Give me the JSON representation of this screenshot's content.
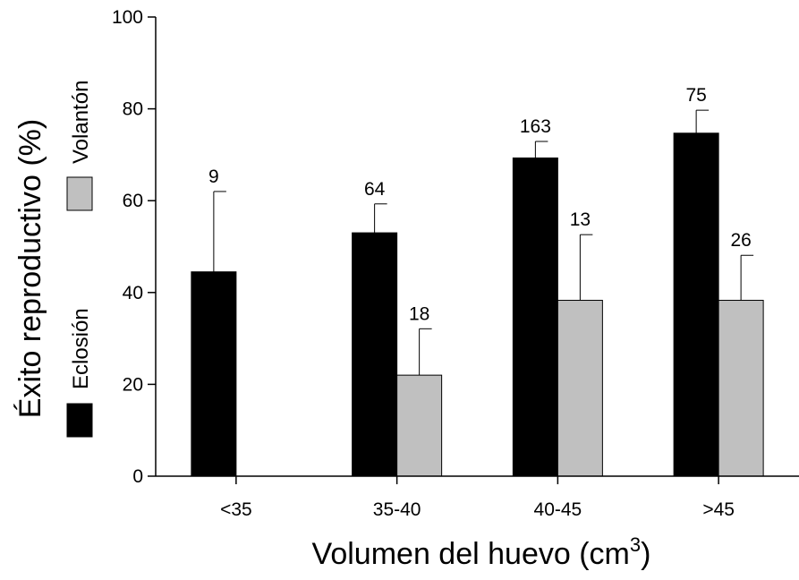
{
  "chart_data": {
    "type": "bar",
    "ylabel": "Éxito reproductivo (%)",
    "xlabel_main": "Volumen del huevo (cm",
    "xlabel_sup": "3",
    "xlabel_close": ")",
    "ylim": [
      0,
      100
    ],
    "yticks": [
      "0",
      "20",
      "40",
      "60",
      "80",
      "100"
    ],
    "categories": [
      "<35",
      "35-40",
      "40-45",
      ">45"
    ],
    "series": [
      {
        "name": "Eclosión",
        "color": "#000000",
        "values": [
          44.5,
          53,
          69.3,
          74.7
        ],
        "errors": [
          17.5,
          6.3,
          3.6,
          5
        ],
        "labels": [
          "9",
          "64",
          "163",
          "75"
        ]
      },
      {
        "name": "Volantón",
        "color": "#c0c0c0",
        "values": [
          null,
          22,
          38.3,
          38.3
        ],
        "errors": [
          null,
          10.1,
          14.3,
          9.8
        ],
        "labels": [
          null,
          "18",
          "13",
          "26"
        ]
      }
    ],
    "legend_position": "left, rotated",
    "grid": false
  }
}
